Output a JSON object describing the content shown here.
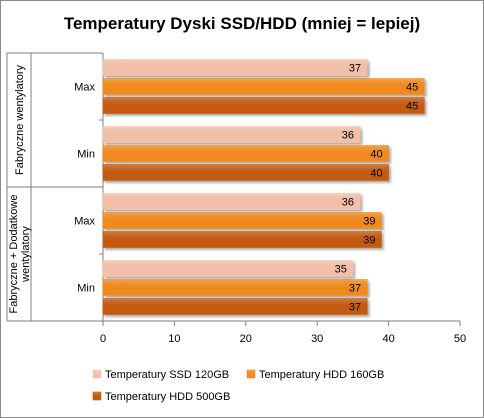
{
  "chart_data": {
    "type": "bar",
    "orientation": "horizontal",
    "title": "Temperatury Dyski SSD/HDD (mniej = lepiej)",
    "xlim": [
      0,
      50
    ],
    "x_ticks": [
      0,
      10,
      20,
      30,
      40,
      50
    ],
    "grid": false,
    "legend_position": "bottom",
    "groups": [
      {
        "label": "Fabryczne wentylatory",
        "label_lines": [
          "Fabryczne wentylatory"
        ],
        "categories": [
          "Max",
          "Min"
        ]
      },
      {
        "label": "Fabryczne + Dodatkowe wentylatory",
        "label_lines": [
          "Fabryczne + Dodatkowe",
          "wentylatory"
        ],
        "categories": [
          "Max",
          "Min"
        ]
      }
    ],
    "series": [
      {
        "name": "Temperatury SSD 120GB",
        "color": "#F2C0A8",
        "values": [
          37,
          36,
          36,
          35
        ]
      },
      {
        "name": "Temperatury HDD 160GB",
        "color": "#F08A1C",
        "values": [
          45,
          40,
          39,
          37
        ]
      },
      {
        "name": "Temperatury HDD 500GB",
        "color": "#C45A0A",
        "values": [
          45,
          40,
          39,
          37
        ]
      }
    ]
  }
}
